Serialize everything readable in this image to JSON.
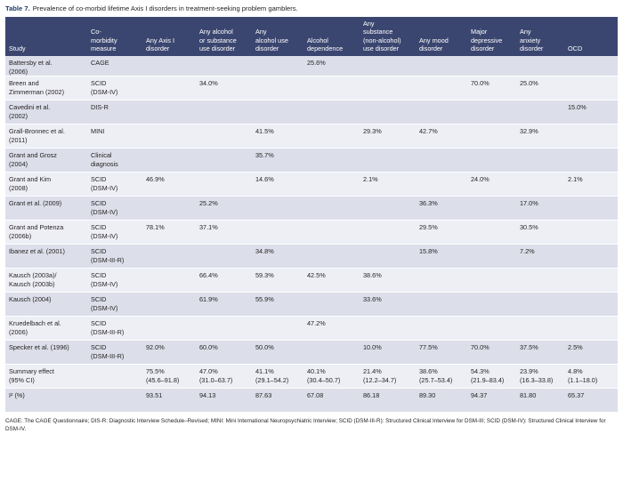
{
  "caption": {
    "label": "Table 7.",
    "text": "Prevalence of co-morbid lifetime Axis I disorders in treatment-seeking problem gamblers."
  },
  "columns": [
    "Study",
    "Co-\nmorbidity\nmeasure",
    "Any Axis I\ndisorder",
    "Any alcohol\nor substance\nuse disorder",
    "Any\nalcohol use\ndisorder",
    "Alcohol\ndependence",
    "Any\nsubstance\n(non-alcohol)\nuse disorder",
    "Any mood\ndisorder",
    "Major\ndepressive\ndisorder",
    "Any\nanxiety\ndisorder",
    "OCD"
  ],
  "rows": [
    [
      "Battersby et al.\n(2006)",
      "CAGE",
      "",
      "",
      "",
      "25.6%",
      "",
      "",
      "",
      "",
      ""
    ],
    [
      "Breen and\nZimmerman (2002)",
      "SCID\n(DSM-IV)",
      "",
      "34.0%",
      "",
      "",
      "",
      "",
      "70.0%",
      "25.0%",
      ""
    ],
    [
      "Cavedini et al.\n(2002)",
      "DIS-R",
      "",
      "",
      "",
      "",
      "",
      "",
      "",
      "",
      "15.0%"
    ],
    [
      "Grall-Bronnec et al.\n(2011)",
      "MINI",
      "",
      "",
      "41.5%",
      "",
      "29.3%",
      "42.7%",
      "",
      "32.9%",
      ""
    ],
    [
      "Grant and Grosz\n(2004)",
      "Clinical\ndiagnosis",
      "",
      "",
      "35.7%",
      "",
      "",
      "",
      "",
      "",
      ""
    ],
    [
      "Grant and Kim\n(2008)",
      "SCID\n(DSM-IV)",
      "46.9%",
      "",
      "14.6%",
      "",
      "2.1%",
      "",
      "24.0%",
      "",
      "2.1%"
    ],
    [
      "Grant et al. (2009)",
      "SCID\n(DSM-IV)",
      "",
      "25.2%",
      "",
      "",
      "",
      "36.3%",
      "",
      "17.0%",
      ""
    ],
    [
      "Grant and Potenza\n(2006b)",
      "SCID\n(DSM-IV)",
      "78.1%",
      "37.1%",
      "",
      "",
      "",
      "29.5%",
      "",
      "30.5%",
      ""
    ],
    [
      "Ibanez et al. (2001)",
      "SCID\n(DSM-III-R)",
      "",
      "",
      "34.8%",
      "",
      "",
      "15.8%",
      "",
      "7.2%",
      ""
    ],
    [
      "Kausch (2003a)/\nKausch (2003b)",
      "SCID\n(DSM-IV)",
      "",
      "66.4%",
      "59.3%",
      "42.5%",
      "38.6%",
      "",
      "",
      "",
      ""
    ],
    [
      "Kausch (2004)",
      "SCID\n(DSM-IV)",
      "",
      "61.9%",
      "55.9%",
      "",
      "33.6%",
      "",
      "",
      "",
      ""
    ],
    [
      "Kruedelbach et al.\n(2006)",
      "SCID\n(DSM-III-R)",
      "",
      "",
      "",
      "47.2%",
      "",
      "",
      "",
      "",
      ""
    ],
    [
      "Specker et al. (1996)",
      "SCID\n(DSM-III-R)",
      "92.0%",
      "60.0%",
      "50.0%",
      "",
      "10.0%",
      "77.5%",
      "70.0%",
      "37.5%",
      "2.5%"
    ],
    [
      "Summary effect\n(95% CI)",
      "",
      "75.5%\n(45.6–91.8)",
      "47.0%\n(31.0–63.7)",
      "41.1%\n(29.1–54.2)",
      "40.1%\n(30.4–50.7)",
      "21.4%\n(12.2–34.7)",
      "38.6%\n(25.7–53.4)",
      "54.3%\n(21.9–83.4)",
      "23.9%\n(16.3–33.8)",
      "4.8%\n(1.1–18.0)"
    ],
    [
      "I² (%)",
      "",
      "93.51",
      "94.13",
      "87.63",
      "67.08",
      "86.18",
      "89.30",
      "94.37",
      "81.80",
      "65.37"
    ]
  ],
  "footnote": "CAGE: The CAGE Questionnaire; DIS-R: Diagnostic Interview Schedule–Revised; MINI: Mini International Neuropsychiatric Interview; SCID (DSM-III-R): Structured Clinical Interview for DSM-III; SCID (DSM-IV): Structured Clinical Interview for DSM-IV."
}
